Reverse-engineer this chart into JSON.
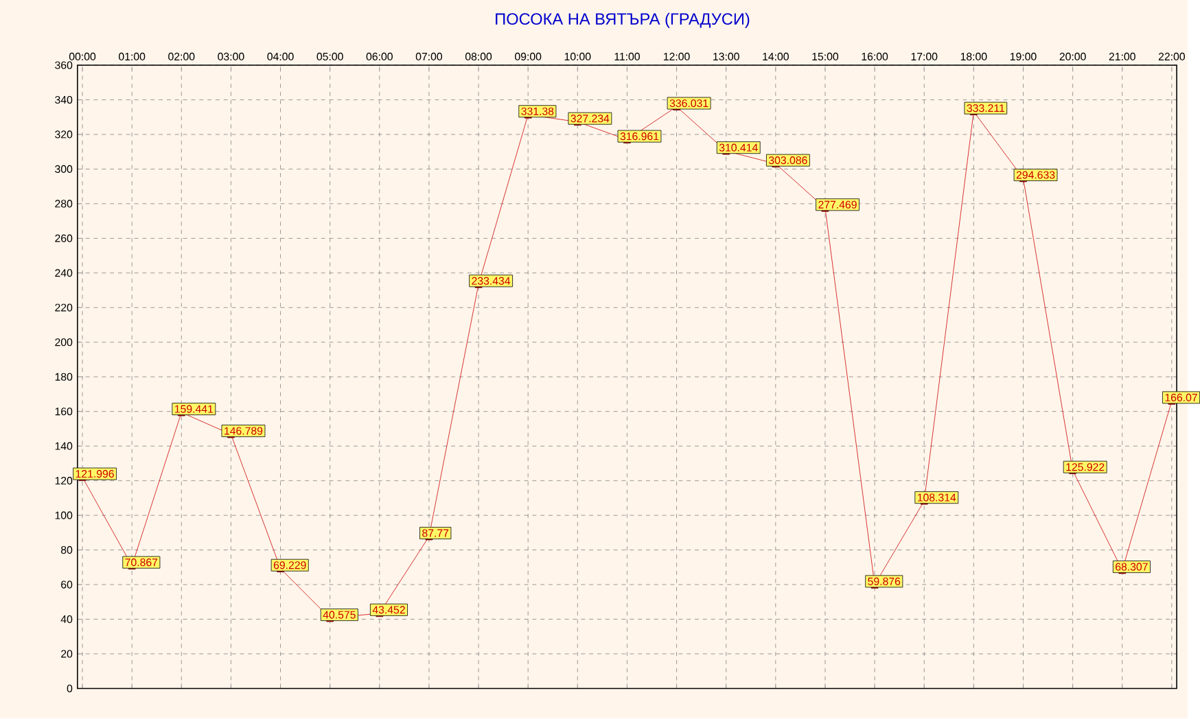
{
  "chart_data": {
    "type": "line",
    "title": "ПОСОКА НА ВЯТЪРА    (ГРАДУСИ)",
    "categories": [
      "00:00",
      "01:00",
      "02:00",
      "03:00",
      "04:00",
      "05:00",
      "06:00",
      "07:00",
      "08:00",
      "09:00",
      "10:00",
      "11:00",
      "12:00",
      "13:00",
      "14:00",
      "15:00",
      "16:00",
      "17:00",
      "18:00",
      "19:00",
      "20:00",
      "21:00",
      "22:00"
    ],
    "values": [
      121.996,
      70.867,
      159.441,
      146.789,
      69.229,
      40.575,
      43.452,
      87.77,
      233.434,
      331.38,
      327.234,
      316.961,
      336.031,
      310.414,
      303.086,
      277.469,
      59.876,
      108.314,
      333.211,
      294.633,
      125.922,
      68.307,
      166.07
    ],
    "color": "#cc0000",
    "ylim": [
      0,
      360
    ],
    "yticks": [
      0,
      20,
      40,
      60,
      80,
      100,
      120,
      140,
      160,
      180,
      200,
      220,
      240,
      260,
      280,
      300,
      320,
      340,
      360
    ],
    "grid": true,
    "marker": "square",
    "data_labels": true
  }
}
